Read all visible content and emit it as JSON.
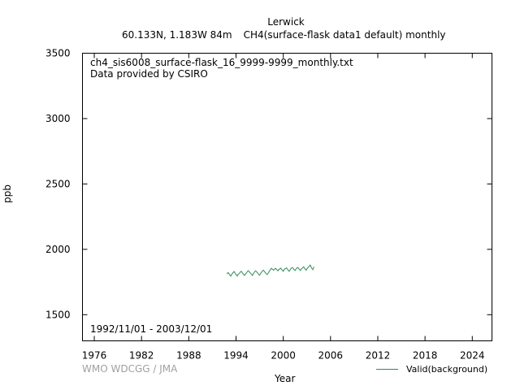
{
  "header": {
    "station": "Lerwick",
    "location": "60.133N, 1.183W 84m",
    "dataset": "CH4(surface-flask data1 default) monthly"
  },
  "footer": {
    "credit": "WMO WDCGG / JMA",
    "legend_label": "Valid(background)"
  },
  "colors": {
    "series": "#2e8b57",
    "credit": "#a0a0a0"
  },
  "chart_data": {
    "type": "line",
    "title": "Lerwick",
    "xlabel": "Year",
    "ylabel": "ppb",
    "xlim": [
      1974.5,
      2026.5
    ],
    "ylim": [
      1300,
      3500
    ],
    "x_ticks": [
      1976,
      1982,
      1988,
      1994,
      2000,
      2006,
      2012,
      2018,
      2024
    ],
    "y_ticks": [
      1500,
      2000,
      2500,
      3000,
      3500
    ],
    "grid": false,
    "legend_position": "bottom-right",
    "annotations": {
      "file": "ch4_sis6008_surface-flask_16_9999-9999_monthly.txt",
      "provider": "Data provided by CSIRO",
      "period": "1992/11/01 - 2003/12/01"
    },
    "series": [
      {
        "name": "Valid(background)",
        "color": "#2e8b57",
        "x": [
          1992.83,
          1992.92,
          1993.0,
          1993.08,
          1993.17,
          1993.25,
          1993.33,
          1993.42,
          1993.5,
          1993.58,
          1993.67,
          1993.75,
          1993.83,
          1993.92,
          1994.0,
          1994.08,
          1994.17,
          1994.25,
          1994.33,
          1994.42,
          1994.5,
          1994.58,
          1994.67,
          1994.75,
          1994.83,
          1994.92,
          1995.0,
          1995.08,
          1995.17,
          1995.25,
          1995.33,
          1995.42,
          1995.5,
          1995.58,
          1995.67,
          1995.75,
          1995.83,
          1995.92,
          1996.0,
          1996.08,
          1996.17,
          1996.25,
          1996.33,
          1996.42,
          1996.5,
          1996.58,
          1996.67,
          1996.75,
          1996.83,
          1996.92,
          1997.0,
          1997.08,
          1997.17,
          1997.25,
          1997.33,
          1997.42,
          1997.5,
          1997.58,
          1997.67,
          1997.75,
          1997.83,
          1997.92,
          1998.0,
          1998.08,
          1998.17,
          1998.25,
          1998.33,
          1998.42,
          1998.5,
          1998.58,
          1998.67,
          1998.75,
          1998.83,
          1998.92,
          1999.0,
          1999.08,
          1999.17,
          1999.25,
          1999.33,
          1999.42,
          1999.5,
          1999.58,
          1999.67,
          1999.75,
          1999.83,
          1999.92,
          2000.0,
          2000.08,
          2000.17,
          2000.25,
          2000.33,
          2000.42,
          2000.5,
          2000.58,
          2000.67,
          2000.75,
          2000.83,
          2000.92,
          2001.0,
          2001.08,
          2001.17,
          2001.25,
          2001.33,
          2001.42,
          2001.5,
          2001.58,
          2001.67,
          2001.75,
          2001.83,
          2001.92,
          2002.0,
          2002.08,
          2002.17,
          2002.25,
          2002.33,
          2002.42,
          2002.5,
          2002.58,
          2002.67,
          2002.75,
          2002.83,
          2002.92,
          2003.0,
          2003.08,
          2003.17,
          2003.25,
          2003.33,
          2003.42,
          2003.5,
          2003.58,
          2003.67,
          2003.75,
          2003.83,
          2003.92
        ],
        "y": [
          1812,
          1818,
          1822,
          1815,
          1808,
          1800,
          1795,
          1805,
          1812,
          1818,
          1825,
          1830,
          1822,
          1815,
          1808,
          1800,
          1796,
          1808,
          1812,
          1815,
          1822,
          1828,
          1832,
          1825,
          1818,
          1812,
          1805,
          1800,
          1808,
          1815,
          1820,
          1828,
          1833,
          1836,
          1830,
          1822,
          1818,
          1812,
          1806,
          1800,
          1810,
          1818,
          1826,
          1832,
          1835,
          1830,
          1824,
          1818,
          1812,
          1806,
          1802,
          1812,
          1820,
          1826,
          1834,
          1838,
          1840,
          1832,
          1826,
          1820,
          1814,
          1808,
          1810,
          1818,
          1826,
          1836,
          1842,
          1848,
          1855,
          1850,
          1846,
          1840,
          1845,
          1850,
          1855,
          1850,
          1845,
          1840,
          1836,
          1845,
          1848,
          1852,
          1856,
          1850,
          1844,
          1838,
          1832,
          1842,
          1848,
          1852,
          1855,
          1858,
          1850,
          1844,
          1838,
          1832,
          1840,
          1848,
          1854,
          1858,
          1860,
          1855,
          1848,
          1842,
          1838,
          1846,
          1852,
          1858,
          1862,
          1856,
          1850,
          1845,
          1838,
          1846,
          1852,
          1856,
          1862,
          1866,
          1860,
          1852,
          1845,
          1840,
          1850,
          1856,
          1862,
          1868,
          1872,
          1880,
          1870,
          1858,
          1850,
          1845,
          1858,
          1866
        ]
      }
    ]
  }
}
